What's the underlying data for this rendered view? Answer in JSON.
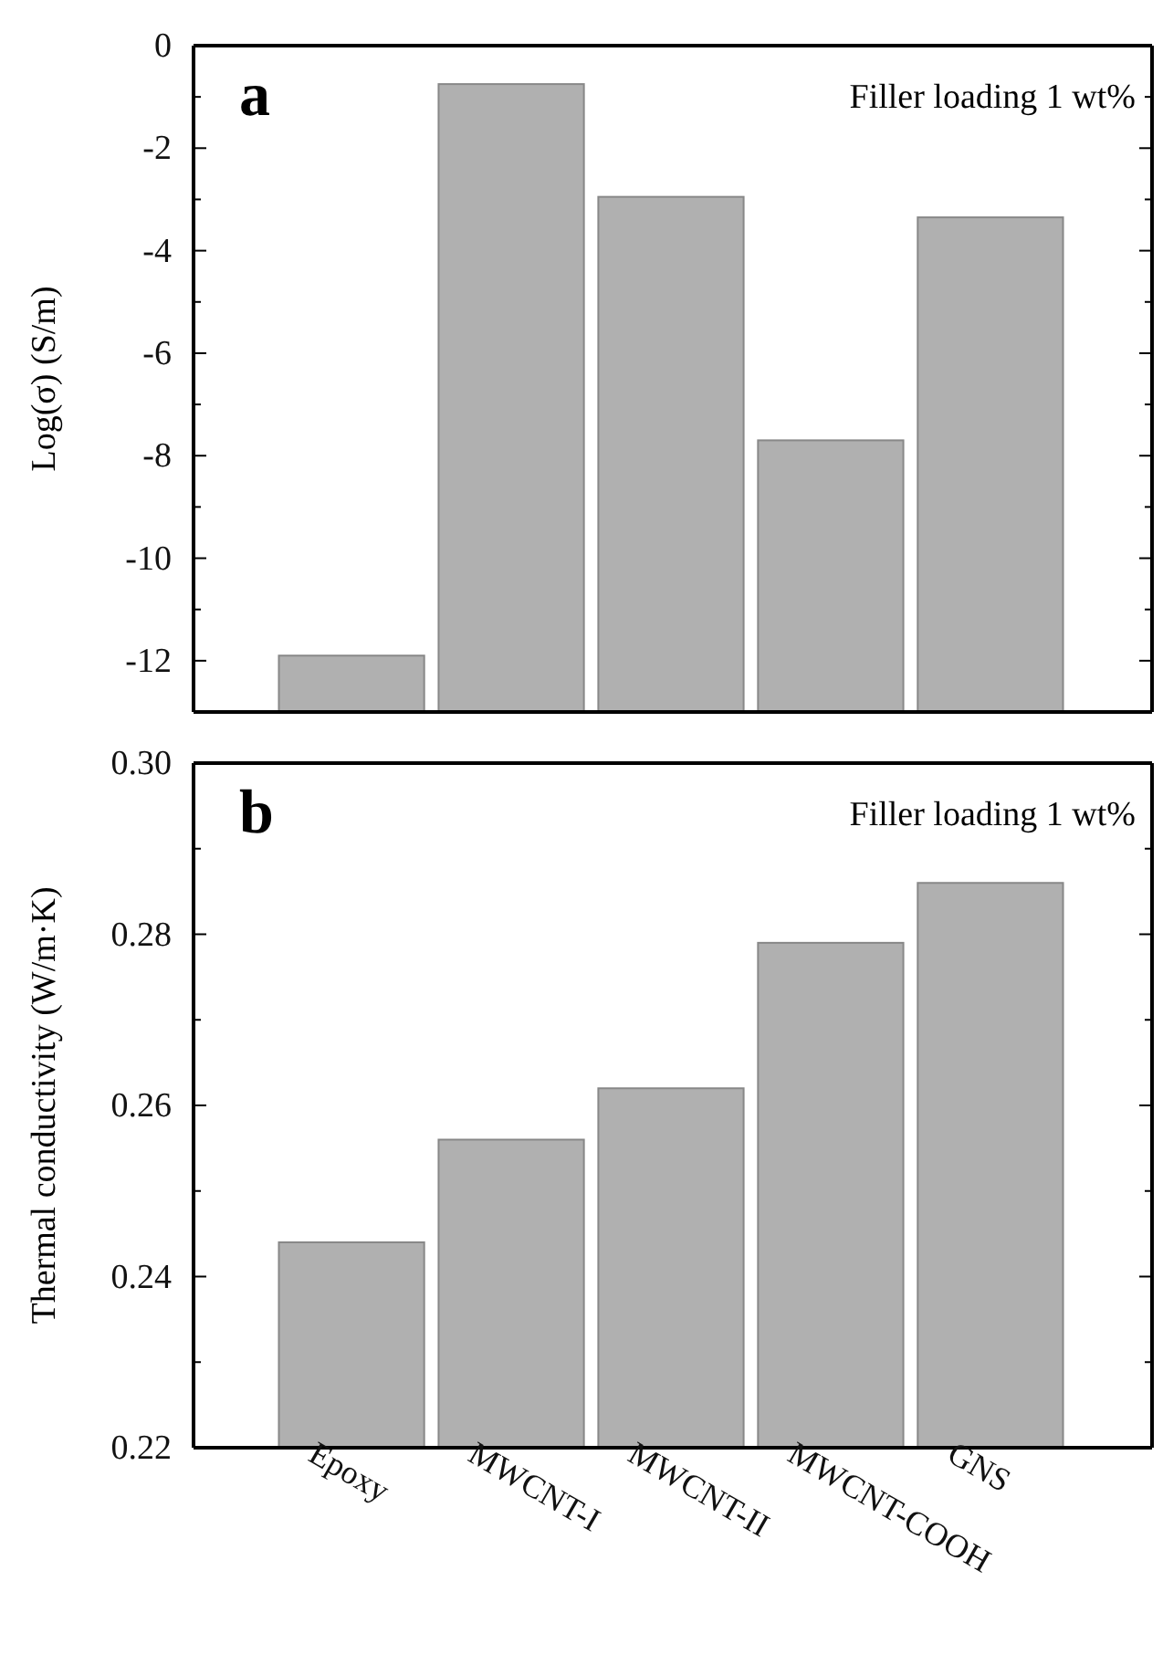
{
  "chart_data": [
    {
      "type": "bar",
      "ylabel": "Log(σ) (S/m)",
      "annotations": [
        "a",
        "Filler loading 1 wt%"
      ],
      "categories": [
        null,
        null,
        null,
        null,
        null
      ],
      "base": [
        -13,
        -13,
        -13,
        -13,
        -13
      ],
      "values": [
        1.1,
        12.25,
        10.05,
        5.3,
        9.65
      ],
      "color": "#b0b0b0",
      "ylim": [
        -13,
        0
      ],
      "yticks": [
        {
          "value": -13,
          "label": null
        },
        -12,
        {
          "value": -11,
          "label": null
        },
        -10,
        {
          "value": -9,
          "label": null
        },
        -8,
        {
          "value": -7,
          "label": null
        },
        -6,
        {
          "value": -5,
          "label": null
        },
        -4,
        {
          "value": -3,
          "label": null
        },
        -2,
        {
          "value": -1,
          "label": null
        },
        0
      ],
      "tick_labels": "y"
    },
    {
      "type": "bar",
      "ylabel": "Thermal conductivity (W/m·K)",
      "annotations": [
        "b",
        "Filler loading 1 wt%"
      ],
      "categories": [
        "Epoxy",
        "MWCNT-I",
        "MWCNT-II",
        "MWCNT-COOH",
        "GNS"
      ],
      "values": [
        0.244,
        0.256,
        0.262,
        0.279,
        0.286
      ],
      "color": "#b0b0b0",
      "ylim": [
        0.22,
        0.3
      ],
      "yticks": [
        {
          "value": 0.22,
          "label": "0.22"
        },
        {
          "value": 0.23,
          "label": null
        },
        {
          "value": 0.24,
          "label": "0.24"
        },
        {
          "value": 0.25,
          "label": null
        },
        {
          "value": 0.26,
          "label": "0.26"
        },
        {
          "value": 0.27,
          "label": null
        },
        {
          "value": 0.28,
          "label": "0.28"
        },
        {
          "value": 0.29,
          "label": null
        },
        {
          "value": 0.3,
          "label": "0.30"
        }
      ]
    }
  ]
}
